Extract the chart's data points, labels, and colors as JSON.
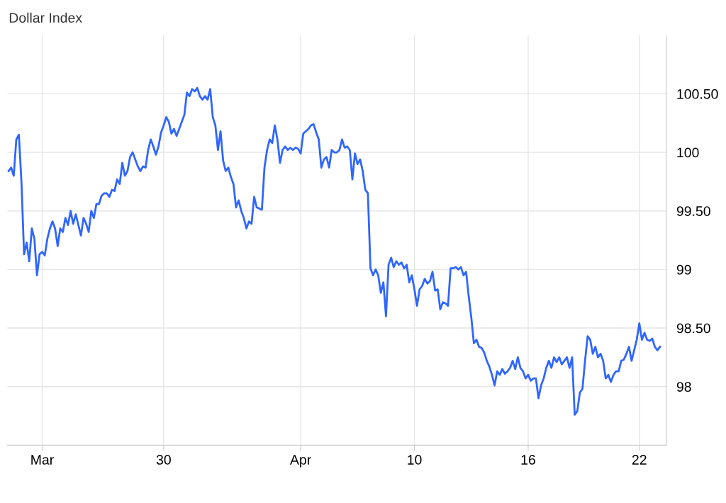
{
  "chart_data": {
    "type": "line",
    "title": "Dollar Index",
    "categories": [
      null,
      null,
      null,
      null,
      null,
      null,
      null,
      null,
      null,
      null,
      null,
      null,
      null,
      "Mar",
      null,
      null,
      null,
      null,
      null,
      null,
      null,
      null,
      null,
      null,
      null,
      null,
      null,
      null,
      null,
      null,
      null,
      null,
      null,
      null,
      null,
      null,
      null,
      null,
      null,
      null,
      null,
      null,
      null,
      null,
      null,
      null,
      null,
      null,
      null,
      null,
      null,
      null,
      null,
      null,
      null,
      null,
      null,
      null,
      null,
      null,
      "30",
      null,
      null,
      null,
      null,
      null,
      null,
      null,
      null,
      null,
      null,
      null,
      null,
      null,
      null,
      null,
      null,
      null,
      null,
      null,
      null,
      null,
      null,
      null,
      null,
      null,
      null,
      null,
      null,
      null,
      null,
      null,
      null,
      null,
      null,
      null,
      null,
      null,
      null,
      null,
      null,
      null,
      null,
      null,
      null,
      null,
      null,
      null,
      null,
      null,
      null,
      null,
      null,
      "Apr",
      null,
      null,
      null,
      null,
      null,
      null,
      null,
      null,
      null,
      null,
      null,
      null,
      null,
      null,
      null,
      null,
      null,
      null,
      null,
      null,
      null,
      null,
      null,
      null,
      null,
      null,
      null,
      null,
      null,
      null,
      null,
      null,
      null,
      null,
      null,
      null,
      null,
      null,
      null,
      null,
      null,
      null,
      null,
      "10",
      null,
      null,
      null,
      null,
      null,
      null,
      null,
      null,
      null,
      null,
      null,
      null,
      null,
      null,
      null,
      null,
      null,
      null,
      null,
      null,
      null,
      null,
      null,
      null,
      null,
      null,
      null,
      null,
      null,
      null,
      null,
      null,
      null,
      null,
      null,
      null,
      null,
      null,
      null,
      null,
      null,
      null,
      null,
      "16",
      null,
      null,
      null,
      null,
      null,
      null,
      null,
      null,
      null,
      null,
      null,
      null,
      null,
      null,
      null,
      null,
      null,
      null,
      null,
      null,
      null,
      null,
      null,
      null,
      null,
      null,
      null,
      null,
      null,
      null,
      null,
      null,
      null,
      null,
      null,
      null,
      null,
      null,
      null,
      null,
      null,
      null,
      "22",
      null,
      null,
      null,
      null,
      null,
      null,
      null,
      null
    ],
    "series": [
      {
        "color": "#2f66ff",
        "values": [
          99.84,
          99.87,
          99.8,
          100.11,
          100.15,
          99.74,
          99.13,
          99.23,
          99.07,
          99.35,
          99.26,
          98.95,
          99.13,
          99.15,
          99.12,
          99.26,
          99.35,
          99.41,
          99.35,
          99.2,
          99.35,
          99.32,
          99.44,
          99.38,
          99.5,
          99.39,
          99.47,
          99.38,
          99.29,
          99.44,
          99.39,
          99.32,
          99.5,
          99.44,
          99.56,
          99.56,
          99.63,
          99.65,
          99.65,
          99.62,
          99.68,
          99.67,
          99.77,
          99.73,
          99.91,
          99.8,
          99.84,
          99.96,
          100.0,
          99.94,
          99.88,
          99.84,
          99.88,
          99.87,
          100.02,
          100.11,
          100.05,
          99.98,
          100.05,
          100.17,
          100.23,
          100.3,
          100.26,
          100.16,
          100.2,
          100.14,
          100.2,
          100.26,
          100.32,
          100.51,
          100.48,
          100.54,
          100.52,
          100.55,
          100.48,
          100.45,
          100.48,
          100.45,
          100.54,
          100.3,
          100.23,
          100.02,
          100.18,
          99.93,
          99.84,
          99.87,
          99.79,
          99.73,
          99.53,
          99.59,
          99.5,
          99.44,
          99.35,
          99.41,
          99.39,
          99.62,
          99.53,
          99.52,
          99.51,
          99.87,
          100.02,
          100.11,
          100.08,
          100.23,
          100.11,
          99.91,
          100.02,
          100.05,
          100.02,
          100.04,
          100.02,
          100.04,
          100.03,
          99.99,
          100.16,
          100.18,
          100.2,
          100.23,
          100.24,
          100.17,
          100.11,
          99.87,
          99.94,
          99.96,
          99.87,
          100.02,
          100.0,
          100.0,
          100.02,
          100.11,
          100.04,
          100.05,
          100.02,
          99.77,
          99.99,
          99.9,
          99.94,
          99.84,
          99.68,
          99.65,
          99.01,
          98.95,
          99.0,
          98.95,
          98.8,
          98.89,
          98.6,
          99.04,
          99.1,
          99.02,
          99.07,
          99.04,
          99.06,
          99.01,
          99.04,
          98.89,
          98.95,
          98.83,
          98.69,
          98.83,
          98.86,
          98.92,
          98.88,
          98.9,
          98.98,
          98.82,
          98.83,
          98.66,
          98.72,
          98.71,
          98.69,
          99.01,
          99.01,
          99.02,
          99.0,
          99.02,
          98.95,
          98.98,
          98.77,
          98.59,
          98.37,
          98.4,
          98.34,
          98.33,
          98.29,
          98.22,
          98.17,
          98.1,
          98.01,
          98.13,
          98.1,
          98.15,
          98.11,
          98.13,
          98.16,
          98.22,
          98.15,
          98.25,
          98.16,
          98.13,
          98.07,
          98.1,
          98.05,
          98.07,
          98.07,
          97.9,
          98.01,
          98.07,
          98.16,
          98.22,
          98.16,
          98.25,
          98.21,
          98.25,
          98.19,
          98.22,
          98.25,
          98.16,
          98.25,
          97.76,
          97.79,
          97.95,
          97.98,
          98.22,
          98.43,
          98.4,
          98.28,
          98.34,
          98.25,
          98.28,
          98.22,
          98.07,
          98.1,
          98.04,
          98.1,
          98.13,
          98.13,
          98.22,
          98.23,
          98.28,
          98.34,
          98.22,
          98.31,
          98.4,
          98.54,
          98.4,
          98.46,
          98.4,
          98.39,
          98.41,
          98.34,
          98.31,
          98.34
        ]
      }
    ],
    "ylim": [
      97.5,
      101.0
    ],
    "yticks": [
      {
        "value": 98,
        "label": "98"
      },
      {
        "value": 98.5,
        "label": "98.50"
      },
      {
        "value": 99,
        "label": "99"
      },
      {
        "value": 99.5,
        "label": "99.50"
      },
      {
        "value": 100,
        "label": "100"
      },
      {
        "value": 100.5,
        "label": "100.50"
      }
    ],
    "grid": true,
    "marker": "none",
    "line_style": "solid"
  }
}
